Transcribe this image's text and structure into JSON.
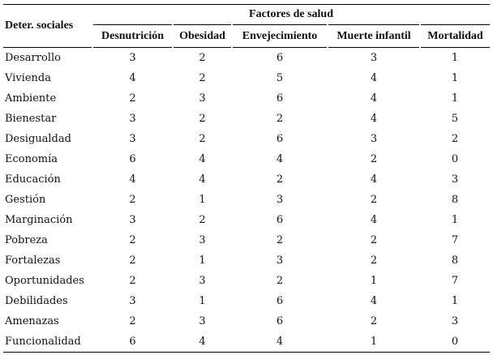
{
  "table": {
    "row_header": "Deter. sociales",
    "group_header": "Factores de salud",
    "columns": [
      "Desnutrición",
      "Obesidad",
      "Envejecimiento",
      "Muerte infantil",
      "Mortalidad"
    ],
    "rows": [
      [
        "Desarrollo",
        3,
        2,
        6,
        3,
        1
      ],
      [
        "Vivienda",
        4,
        2,
        5,
        4,
        1
      ],
      [
        "Ambiente",
        2,
        3,
        6,
        4,
        1
      ],
      [
        "Bienestar",
        3,
        2,
        2,
        4,
        5
      ],
      [
        "Desigualdad",
        3,
        2,
        6,
        3,
        2
      ],
      [
        "Economía",
        6,
        4,
        4,
        2,
        0
      ],
      [
        "Educación",
        4,
        4,
        2,
        4,
        3
      ],
      [
        "Gestión",
        2,
        1,
        3,
        2,
        8
      ],
      [
        "Marginación",
        3,
        2,
        6,
        4,
        1
      ],
      [
        "Pobreza",
        2,
        3,
        2,
        2,
        7
      ],
      [
        "Fortalezas",
        2,
        1,
        3,
        2,
        8
      ],
      [
        "Oportunidades",
        2,
        3,
        2,
        1,
        7
      ],
      [
        "Debilidades",
        3,
        1,
        6,
        4,
        1
      ],
      [
        "Amenazas",
        2,
        3,
        6,
        2,
        3
      ],
      [
        "Funcionalidad",
        6,
        4,
        4,
        1,
        0
      ]
    ]
  }
}
